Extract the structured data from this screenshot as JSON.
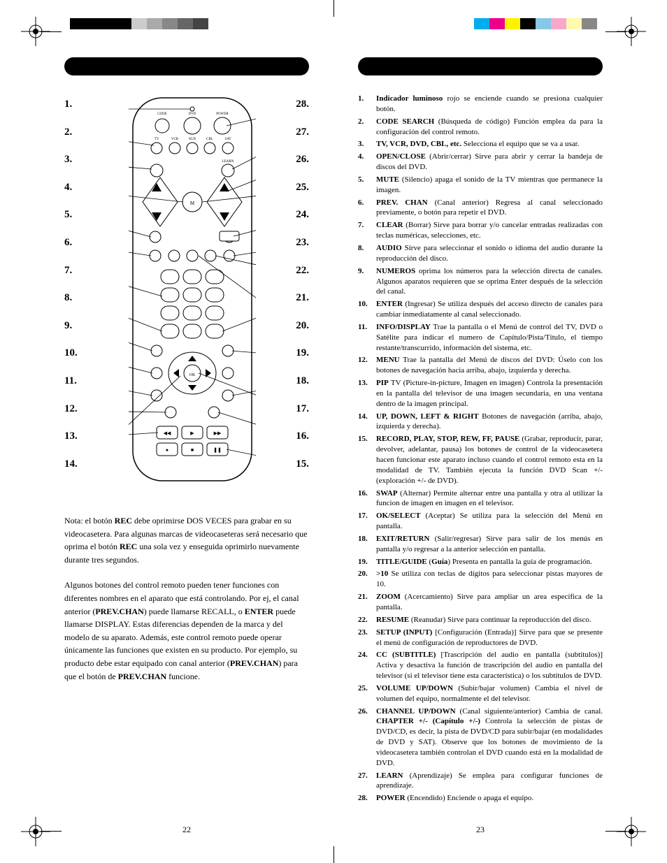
{
  "print_bars_left": [
    "#000000",
    "#000000",
    "#000000",
    "#000000",
    "#cccccc",
    "#aaaaaa",
    "#888888",
    "#666666",
    "#444444",
    "#ffffff",
    "#ffffff"
  ],
  "print_bars_right": [
    "#00aeef",
    "#ec008c",
    "#fff200",
    "#000000",
    "#86c8e5",
    "#f7a8c9",
    "#fffab0",
    "#888888"
  ],
  "header_bg": "#000000",
  "page_left_num": "22",
  "page_right_num": "23",
  "left_callouts": [
    "1.",
    "2.",
    "3.",
    "4.",
    "5.",
    "6.",
    "7.",
    "8.",
    "9.",
    "10.",
    "11.",
    "12.",
    "13.",
    "14."
  ],
  "right_callouts": [
    "28.",
    "27.",
    "26.",
    "25.",
    "24.",
    "23.",
    "22.",
    "21.",
    "20.",
    "19.",
    "18.",
    "17.",
    "16.",
    "15."
  ],
  "left_para1_pre": "Nota: el botón ",
  "left_para1_b1": "REC",
  "left_para1_mid1": " debe oprimirse DOS VECES para grabar en su videocasetera. Para algunas marcas de videocaseteras será necesario que oprima el botón ",
  "left_para1_b2": "REC",
  "left_para1_post": " una sola vez y enseguida oprimirlo nuevamente durante tres segundos.",
  "left_para2_a": "Algunos botones del control remoto pueden tener funciones con diferentes nombres en el aparato que está controlando. Por ej, el canal anterior (",
  "left_para2_b1": "PREV.CHAN",
  "left_para2_b": ") puede llamarse RECALL, o ",
  "left_para2_b2": "ENTER",
  "left_para2_c": " puede llamarse DISPLAY. Estas diferencias dependen de la marca y del modelo de su aparato. Además, este control remoto puede operar únicamente las funciones que existen en su producto. Por ejemplo, su producto debe estar equipado con canal anterior (",
  "left_para2_b3": "PREV.CHAN",
  "left_para2_d": ") para que el botón de ",
  "left_para2_b4": "PREV.CHAN",
  "left_para2_e": " funcione.",
  "features": [
    {
      "n": "1.",
      "b": "Indicador luminoso",
      "t": " rojo se enciende cuando se presiona cualquier botón."
    },
    {
      "n": "2.",
      "b": "CODE SEARCH",
      "t": " (Búsqueda de código) Función emplea da para la configuración del control remoto."
    },
    {
      "n": "3.",
      "b": "TV, VCR, DVD, CBL, etc.",
      "t": " Selecciona el equipo que se va a usar."
    },
    {
      "n": "4.",
      "b": "OPEN/CLOSE",
      "t": " (Abrir/cerrar) Sirve para abrir y cerrar la bandeja de discos del DVD."
    },
    {
      "n": "5.",
      "b": "MUTE",
      "t": " (Silencio) apaga el sonido de la TV mientras que permanece la imagen."
    },
    {
      "n": "6.",
      "b": "PREV. CHAN",
      "t": " (Canal anterior) Regresa al canal seleccionado previamente, o botón para repetir el DVD."
    },
    {
      "n": "7.",
      "b": "CLEAR",
      "t": " (Borrar) Sirve para borrar y/o cancelar entradas realizadas con teclas numéricas, selecciones, etc."
    },
    {
      "n": "8.",
      "b": "AUDIO",
      "t": " Sirve para seleccionar el sonido o idioma del audio durante la reproducción del disco."
    },
    {
      "n": "9.",
      "b": "NUMEROS",
      "t": " oprima los números para la selección directa de canales. Algunos aparatos requieren que se oprima Enter después de la selección del canal."
    },
    {
      "n": "10.",
      "b": "ENTER",
      "t": " (Ingresar) Se utiliza después del acceso directo de canales para cambiar inmediatamente al canal seleccionado."
    },
    {
      "n": "11.",
      "b": "INFO/DISPLAY",
      "t": " Trae la pantalla o el Menú de control del TV, DVD o Satélite para indicar el numero de Capítulo/Pista/Título, el tiempo restante/transcurrido, información del sistema, etc."
    },
    {
      "n": "12.",
      "b": "MENU",
      "t": " Trae la pantalla del Menú de discos del DVD: Úselo con los botones de navegación hacia arriba, abajo, izquierda y derecha."
    },
    {
      "n": "13.",
      "b": "PIP",
      "t": " TV (Picture-in-picture, Imagen en imagen) Controla la presentación en la pantalla del televisor de una imagen secundaria, en una ventana dentro de la imagen principal."
    },
    {
      "n": "14.",
      "b": "UP, DOWN, LEFT & RIGHT",
      "t": " Botones de navegación (arriba, abajo, izquierda y derecha)."
    },
    {
      "n": "15.",
      "b": "RECORD, PLAY, STOP, REW, FF, PAUSE",
      "t": " (Grabar, reproducir, parar, devolver, adelantar, pausa) los botones de control de la videocasetera hacen funcionar este aparato incluso cuando el control remoto esta en la modalidad de TV. También ejecuta la función DVD Scan +/- (exploración +/- de DVD)."
    },
    {
      "n": "16.",
      "b": "SWAP",
      "t": " (Alternar) Permite alternar entre una pantalla y otra al utilizar la funcion de imagen en imagen en el televisor."
    },
    {
      "n": "17.",
      "b": "OK/SELECT",
      "t": " (Aceptar) Se utiliza para la selección del Menú en pantalla."
    },
    {
      "n": "18.",
      "b": "EXIT/RETURN",
      "t": " (Salir/regresar) Sirve para salir de los menús en pantalla y/o regresar a la anterior selección en pantalla."
    },
    {
      "n": "19.",
      "b": "TITLE/GUIDE",
      "t": " (Guía) Presenta en pantalla la guía de programación."
    },
    {
      "n": "20.",
      "b": ">10",
      "t": " Se utiliza con teclas de dígitos para seleccionar pistas mayores de 10."
    },
    {
      "n": "21.",
      "b": "ZOOM",
      "t": " (Acercamiento) Sirve para ampliar un area específica de la pantalla."
    },
    {
      "n": "22.",
      "b": "RESUME",
      "t": " (Reanudar) Sirve para continuar la reproducción del disco."
    },
    {
      "n": "23.",
      "b": "SETUP (INPUT)",
      "t": " [Configuración (Entrada)] Sirve para que se presente el menú de configuración de reproductores de DVD."
    },
    {
      "n": "24.",
      "b": "CC (SUBTITLE)",
      "t": " [Trascripción del audio en pantalla (subtítulos)] Activa y desactiva la función de trascripción del audio en pantalla del televisor (si el televisor tiene esta característica) o los subtítulos de DVD."
    },
    {
      "n": "25.",
      "b": "VOLUME UP/DOWN",
      "t": " (Subir/bajar volumen) Cambia el nivel de volumen del equipo, normalmente el del televisor."
    },
    {
      "n": "26.",
      "b": "CHANNEL UP/DOWN",
      "t": " (Canal siguiente/anterior) Cambia de canal. CHAPTER +/- (Capítulo +/-) Controla la selección de pistas de DVD/CD, es decir, la pista de DVD/CD para subir/bajar (en modalidades de DVD y SAT). Observe que los botones de movimiento de la videocasetera también controlan el DVD cuando está en la modalidad de DVD."
    },
    {
      "n": "27.",
      "b": "LEARN",
      "t": " (Aprendizaje) Se emplea para configurar funciones de aprendizaje."
    },
    {
      "n": "28.",
      "b": "POWER",
      "t": " (Encendido) Enciende o apaga el equipo."
    }
  ],
  "guia_word": "Guía",
  "chapter_bold": "CHAPTER +/- (Capítulo +/-)"
}
